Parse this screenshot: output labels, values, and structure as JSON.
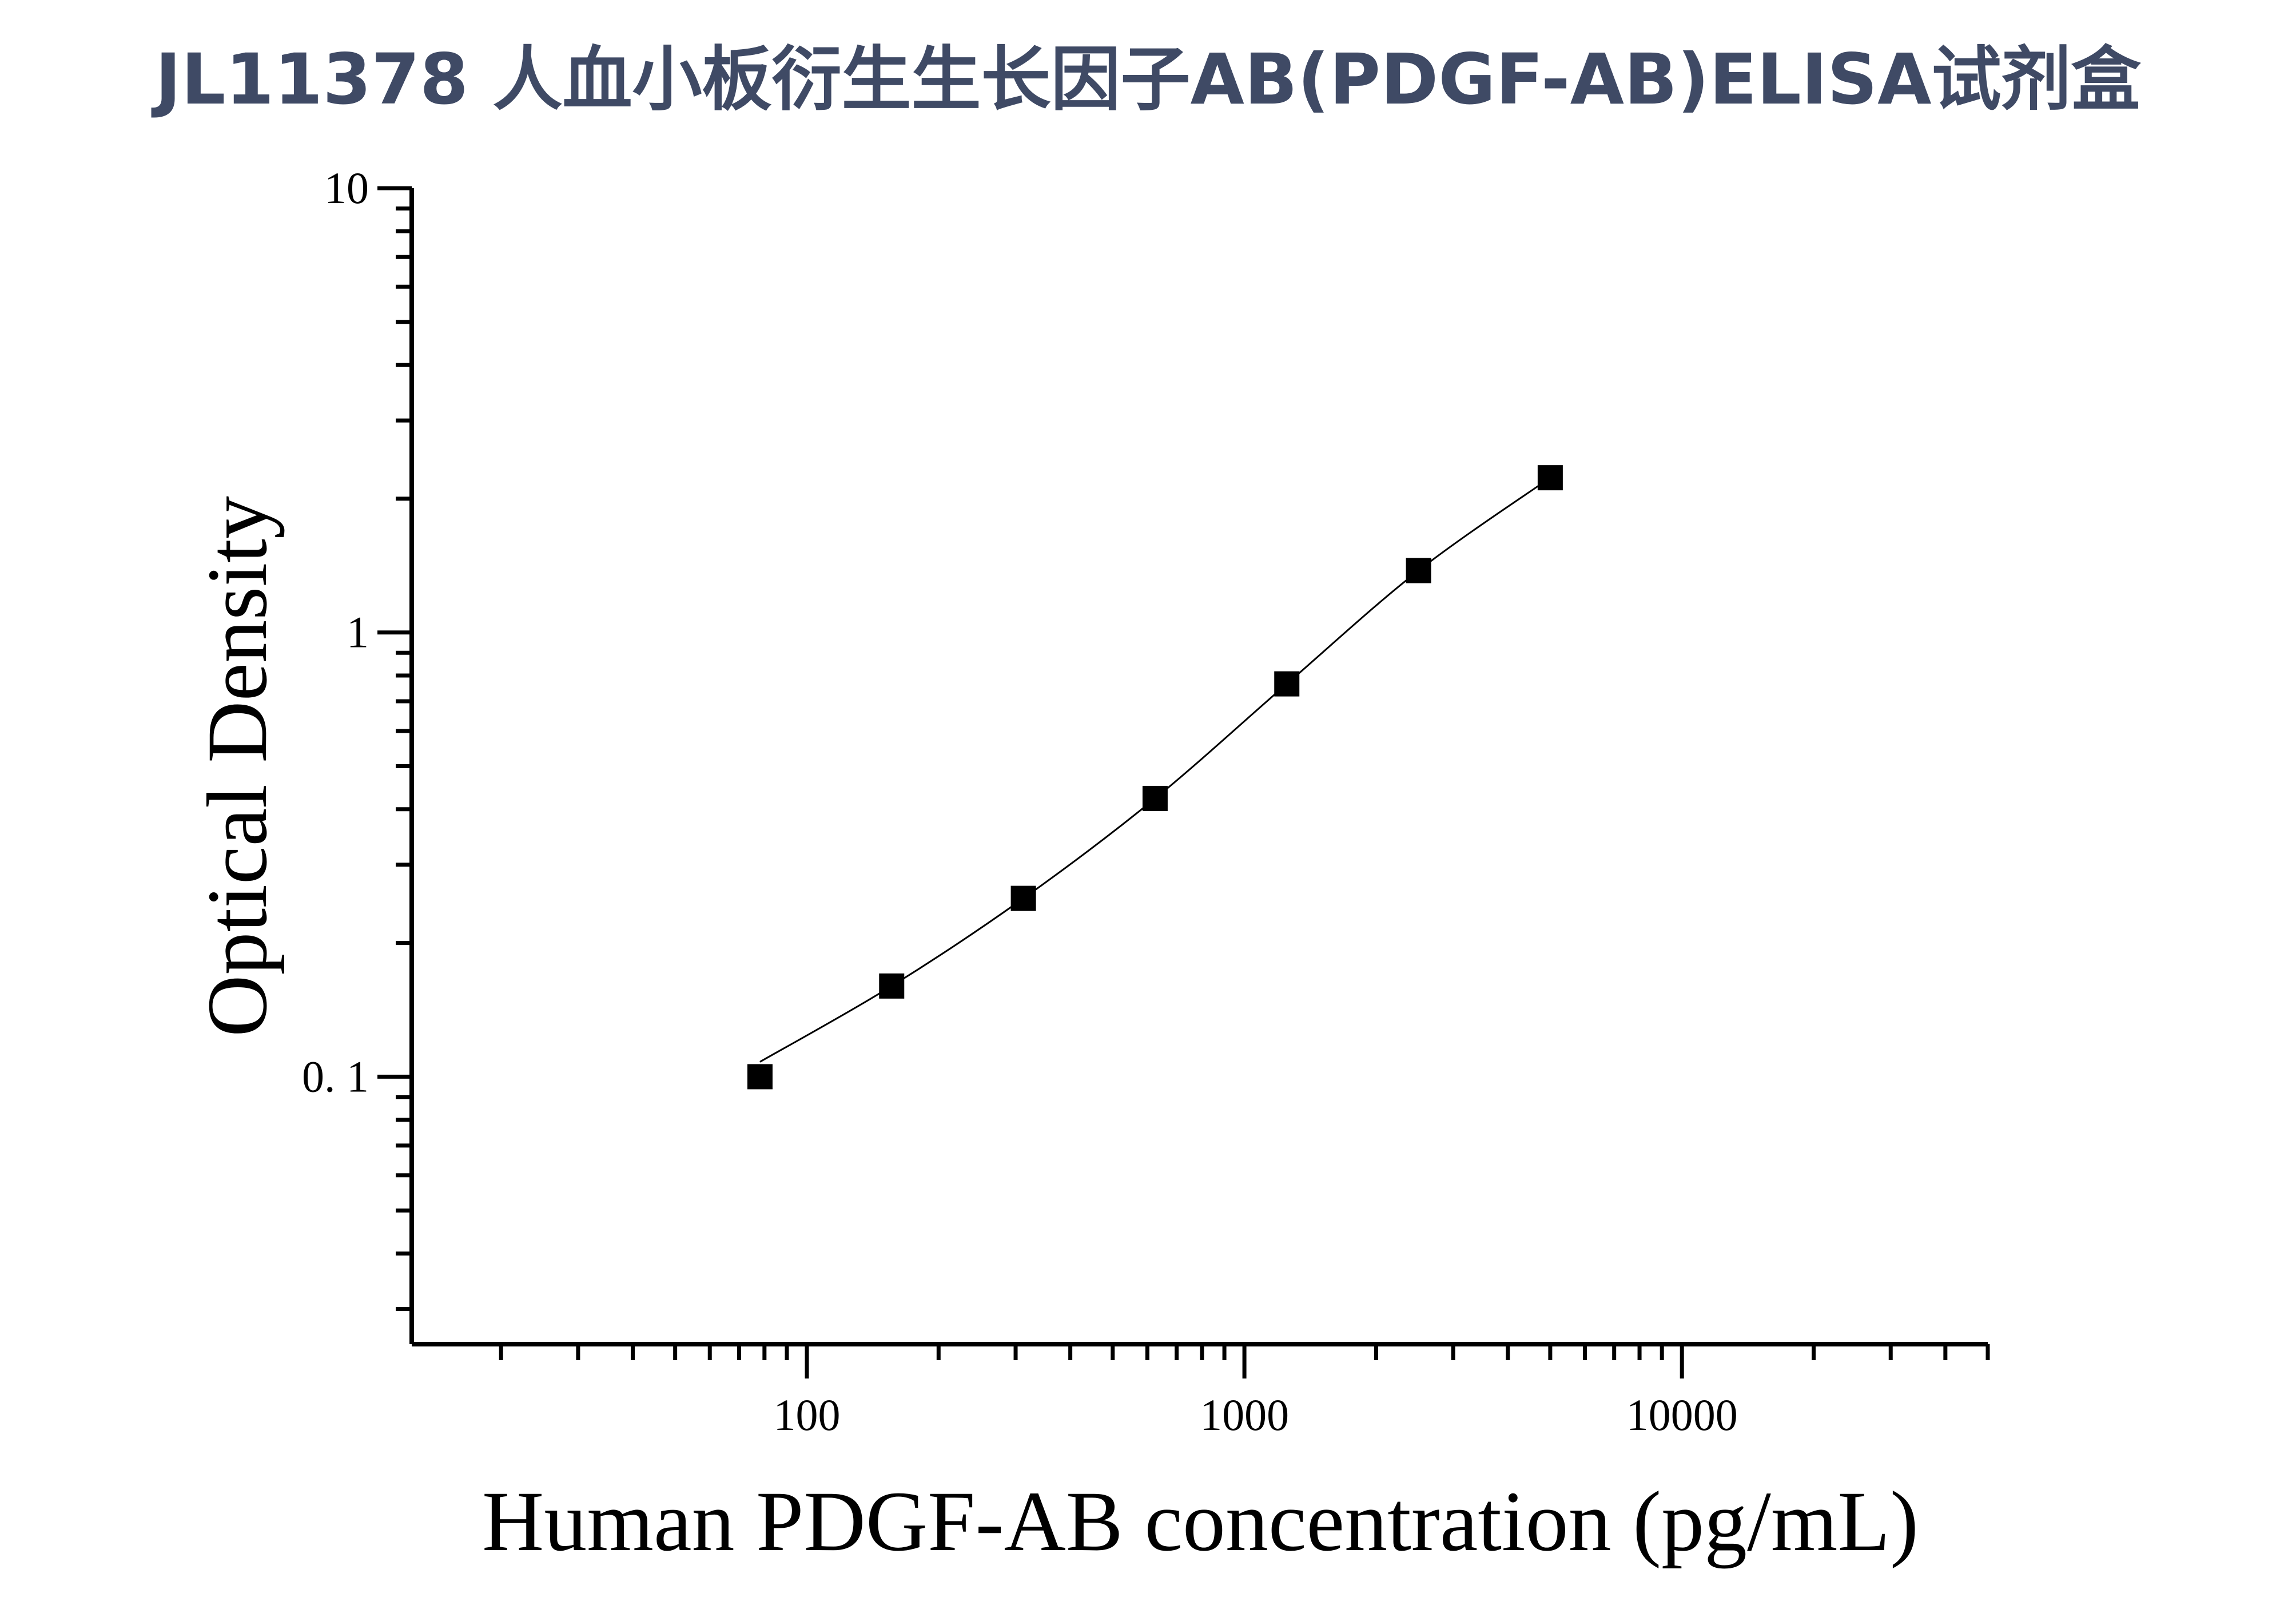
{
  "title": "JL11378 人血小板衍生生长因子AB(PDGF-AB)ELISA试剂盒",
  "chart_data": {
    "type": "scatter",
    "title": "JL11378 人血小板衍生生长因子AB(PDGF-AB)ELISA试剂盒",
    "xlabel": "Human PDGF-AB concentration (pg/mL)",
    "ylabel": "Optical Density",
    "xscale": "log",
    "yscale": "log",
    "xlim": [
      12.5,
      50000
    ],
    "ylim": [
      0.025,
      10
    ],
    "xticks": [
      100,
      1000,
      10000
    ],
    "xtick_labels": [
      "100",
      "1000",
      "10000"
    ],
    "yticks": [
      0.1,
      1,
      10
    ],
    "ytick_labels": [
      "0. 1",
      "1",
      "10"
    ],
    "grid": false,
    "marker": "square",
    "fit_curve": true,
    "colors": {
      "title": "#3f4a65",
      "marks": "#000000"
    },
    "x": [
      78.125,
      156.25,
      312.5,
      625,
      1250,
      2500,
      5000
    ],
    "y": [
      0.1,
      0.16,
      0.252,
      0.423,
      0.766,
      1.378,
      2.23
    ]
  }
}
